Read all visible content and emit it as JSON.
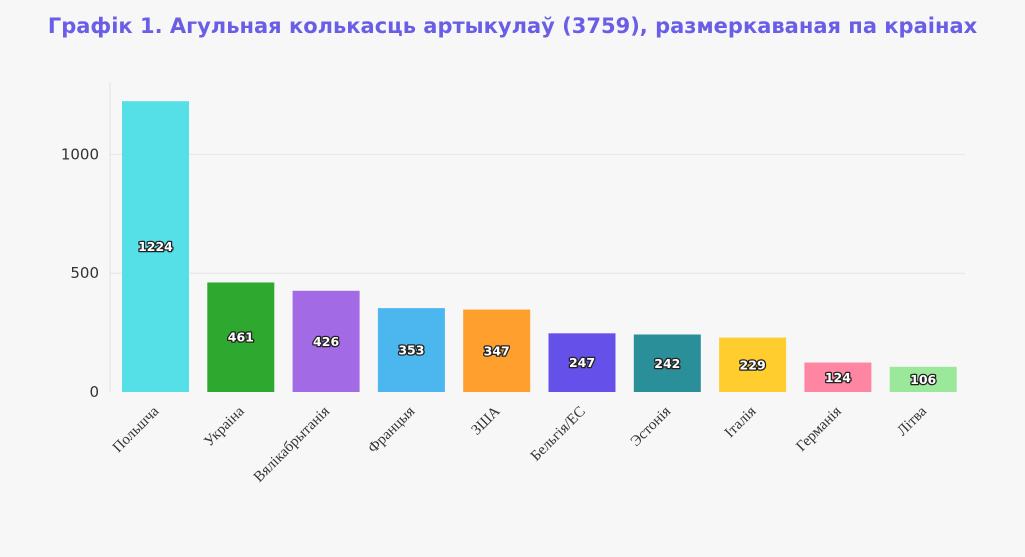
{
  "chart_data": {
    "type": "bar",
    "title": "Графік 1. Агульная колькасць артыкулаў (3759), размеркаваная па краінах",
    "xlabel": "",
    "ylabel": "",
    "categories": [
      "Польшча",
      "Украіна",
      "Вялікабрытанія",
      "Францыя",
      "ЗША",
      "Бельгія/ЕС",
      "Эстонія",
      "Італія",
      "Германія",
      "Літва"
    ],
    "values": [
      1224,
      461,
      426,
      353,
      347,
      247,
      242,
      229,
      124,
      106
    ],
    "colors": [
      "#55e0e8",
      "#2ea82e",
      "#a36ae6",
      "#4cb6ee",
      "#ff9f2e",
      "#6650ea",
      "#2a8f98",
      "#ffce2e",
      "#ff86a2",
      "#9be89b"
    ],
    "yticks": [
      0,
      500,
      1000
    ],
    "ylim": [
      0,
      1300
    ],
    "grid": true,
    "data_labels": true
  }
}
